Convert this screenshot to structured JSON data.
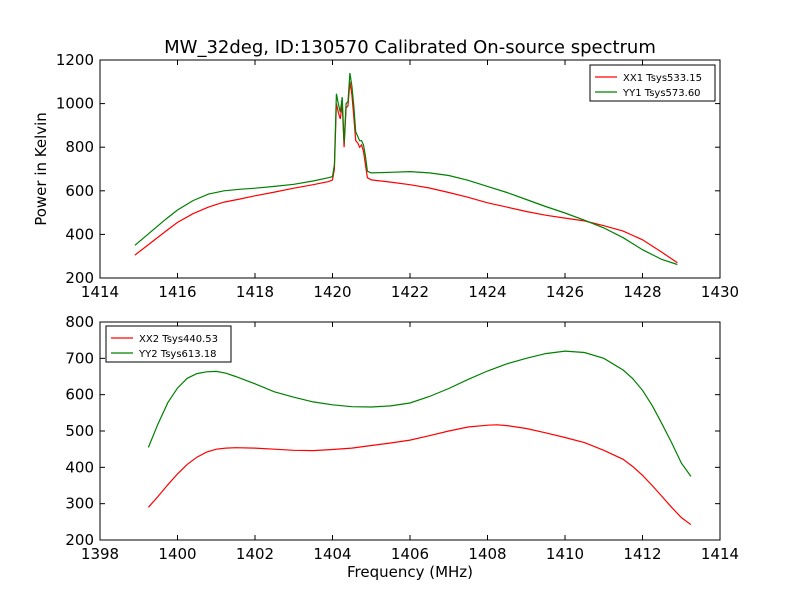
{
  "figure": {
    "title": "MW_32deg, ID:130570 Calibrated On-source spectrum"
  },
  "colors": {
    "series_a": "#ff0000",
    "series_b": "#008000"
  },
  "chart_data": [
    {
      "type": "line",
      "ylabel": "Power in Kelvin",
      "xlabel": "",
      "xlim": [
        1414,
        1430
      ],
      "ylim": [
        200,
        1200
      ],
      "xticks": [
        1414,
        1416,
        1418,
        1420,
        1422,
        1424,
        1426,
        1428,
        1430
      ],
      "yticks": [
        200,
        400,
        600,
        800,
        1000,
        1200
      ],
      "legend": "top-right",
      "series": [
        {
          "name": "XX1 Tsys533.15",
          "color": "#ff0000",
          "x": [
            1414.9,
            1415.3,
            1415.7,
            1416.0,
            1416.4,
            1416.8,
            1417.2,
            1417.6,
            1418.0,
            1418.5,
            1419.0,
            1419.5,
            1419.9,
            1420.0,
            1420.05,
            1420.1,
            1420.15,
            1420.2,
            1420.25,
            1420.3,
            1420.35,
            1420.4,
            1420.45,
            1420.5,
            1420.55,
            1420.6,
            1420.65,
            1420.7,
            1420.75,
            1420.8,
            1420.85,
            1420.9,
            1421.0,
            1421.5,
            1422.0,
            1422.5,
            1423.0,
            1423.5,
            1424.0,
            1424.5,
            1425.0,
            1425.5,
            1426.0,
            1426.5,
            1427.0,
            1427.5,
            1428.0,
            1428.5,
            1428.9
          ],
          "y": [
            305,
            360,
            415,
            455,
            495,
            525,
            548,
            562,
            577,
            594,
            612,
            628,
            642,
            650,
            700,
            1000,
            960,
            930,
            1000,
            800,
            980,
            990,
            1100,
            1040,
            940,
            830,
            820,
            800,
            810,
            780,
            720,
            660,
            650,
            640,
            628,
            613,
            592,
            570,
            545,
            525,
            505,
            488,
            475,
            462,
            440,
            415,
            375,
            318,
            270
          ]
        },
        {
          "name": "YY1 Tsys573.60",
          "color": "#008000",
          "x": [
            1414.9,
            1415.3,
            1415.7,
            1416.0,
            1416.4,
            1416.8,
            1417.2,
            1417.6,
            1418.0,
            1418.5,
            1419.0,
            1419.5,
            1419.9,
            1420.0,
            1420.05,
            1420.1,
            1420.15,
            1420.2,
            1420.25,
            1420.3,
            1420.35,
            1420.4,
            1420.45,
            1420.5,
            1420.55,
            1420.6,
            1420.65,
            1420.7,
            1420.75,
            1420.8,
            1420.85,
            1420.9,
            1421.0,
            1421.5,
            1422.0,
            1422.5,
            1423.0,
            1423.5,
            1424.0,
            1424.5,
            1425.0,
            1425.5,
            1426.0,
            1426.5,
            1427.0,
            1427.5,
            1428.0,
            1428.5,
            1428.9
          ],
          "y": [
            350,
            410,
            470,
            512,
            555,
            585,
            600,
            607,
            612,
            620,
            630,
            645,
            660,
            665,
            720,
            1045,
            1000,
            960,
            1030,
            820,
            1000,
            1010,
            1140,
            1080,
            990,
            870,
            850,
            830,
            830,
            810,
            760,
            690,
            682,
            685,
            688,
            682,
            670,
            648,
            620,
            592,
            560,
            528,
            498,
            465,
            430,
            385,
            330,
            285,
            262
          ]
        }
      ]
    },
    {
      "type": "line",
      "ylabel": "",
      "xlabel": "Frequency (MHz)",
      "xlim": [
        1398,
        1414
      ],
      "ylim": [
        200,
        800
      ],
      "xticks": [
        1398,
        1400,
        1402,
        1404,
        1406,
        1408,
        1410,
        1412,
        1414
      ],
      "yticks": [
        200,
        300,
        400,
        500,
        600,
        700,
        800
      ],
      "legend": "top-left",
      "series": [
        {
          "name": "XX2 Tsys440.53",
          "color": "#ff0000",
          "x": [
            1399.25,
            1399.5,
            1399.75,
            1400.0,
            1400.25,
            1400.5,
            1400.75,
            1401.0,
            1401.25,
            1401.5,
            1402.0,
            1402.5,
            1403.0,
            1403.5,
            1404.0,
            1404.5,
            1405.0,
            1405.5,
            1406.0,
            1406.5,
            1407.0,
            1407.5,
            1408.0,
            1408.25,
            1408.5,
            1409.0,
            1409.5,
            1410.0,
            1410.5,
            1411.0,
            1411.5,
            1411.75,
            1412.0,
            1412.25,
            1412.5,
            1412.75,
            1413.0,
            1413.25
          ],
          "y": [
            290,
            320,
            352,
            382,
            408,
            428,
            442,
            450,
            453,
            454,
            453,
            450,
            447,
            446,
            449,
            453,
            460,
            467,
            475,
            487,
            500,
            511,
            516,
            517,
            515,
            507,
            495,
            482,
            468,
            447,
            422,
            402,
            378,
            350,
            320,
            290,
            262,
            242
          ]
        },
        {
          "name": "YY2 Tsys613.18",
          "color": "#008000",
          "x": [
            1399.25,
            1399.5,
            1399.75,
            1400.0,
            1400.25,
            1400.5,
            1400.75,
            1401.0,
            1401.25,
            1401.5,
            1402.0,
            1402.5,
            1403.0,
            1403.5,
            1404.0,
            1404.5,
            1405.0,
            1405.5,
            1406.0,
            1406.5,
            1407.0,
            1407.5,
            1408.0,
            1408.5,
            1409.0,
            1409.5,
            1410.0,
            1410.5,
            1411.0,
            1411.5,
            1411.75,
            1412.0,
            1412.25,
            1412.5,
            1412.75,
            1413.0,
            1413.25
          ],
          "y": [
            455,
            520,
            578,
            618,
            645,
            658,
            663,
            664,
            659,
            650,
            630,
            608,
            593,
            580,
            572,
            567,
            566,
            569,
            577,
            595,
            617,
            642,
            665,
            685,
            700,
            713,
            720,
            716,
            700,
            668,
            644,
            612,
            570,
            520,
            468,
            412,
            375
          ]
        }
      ]
    }
  ]
}
